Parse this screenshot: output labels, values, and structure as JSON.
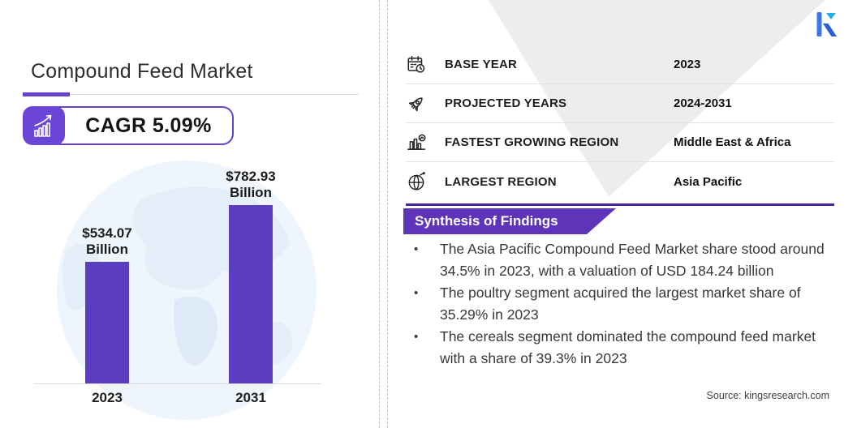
{
  "page": {
    "title": "Compound Feed Market"
  },
  "cagr": {
    "label": "CAGR 5.09%"
  },
  "chart_data": {
    "type": "bar",
    "title": "Compound Feed Market size",
    "categories": [
      "2023",
      "2031"
    ],
    "values": [
      534.07,
      782.93
    ],
    "unit": "USD Billion",
    "value_label_lines": [
      [
        "$534.07",
        "Billion"
      ],
      [
        "$782.93",
        "Billion"
      ]
    ],
    "xlabel": "",
    "ylabel": "",
    "ylim": [
      0,
      800
    ],
    "grid": false,
    "legend": false,
    "bar_color": "#5b3dc2"
  },
  "facts": {
    "rows": [
      {
        "icon": "calendar-clock-icon",
        "label": "BASE YEAR",
        "value": "2023"
      },
      {
        "icon": "rocket-icon",
        "label": "PROJECTED YEARS",
        "value": "2024-2031"
      },
      {
        "icon": "market-growth-icon",
        "label": "FASTEST GROWING REGION",
        "value": "Middle East & Africa"
      },
      {
        "icon": "globe-icon",
        "label": "LARGEST REGION",
        "value": "Asia Pacific"
      }
    ]
  },
  "findings": {
    "heading": "Synthesis of Findings",
    "bullets": [
      "The Asia Pacific Compound Feed Market share stood around 34.5% in 2023, with a valuation of USD 184.24 billion",
      "The poultry segment acquired the largest market share of 35.29% in 2023",
      "The cereals segment dominated the compound feed market with a share of 39.3% in 2023"
    ]
  },
  "source": {
    "text": "Source: kingsresearch.com"
  },
  "colors": {
    "accent_purple": "#6742d0",
    "bar_purple": "#5b3dc2",
    "banner_purple": "#5e34b8",
    "rule_indigo": "#46289b",
    "logo_blue": "#3e77ec",
    "logo_cyan": "#21aee5",
    "map_blue": "#e3eef9"
  }
}
